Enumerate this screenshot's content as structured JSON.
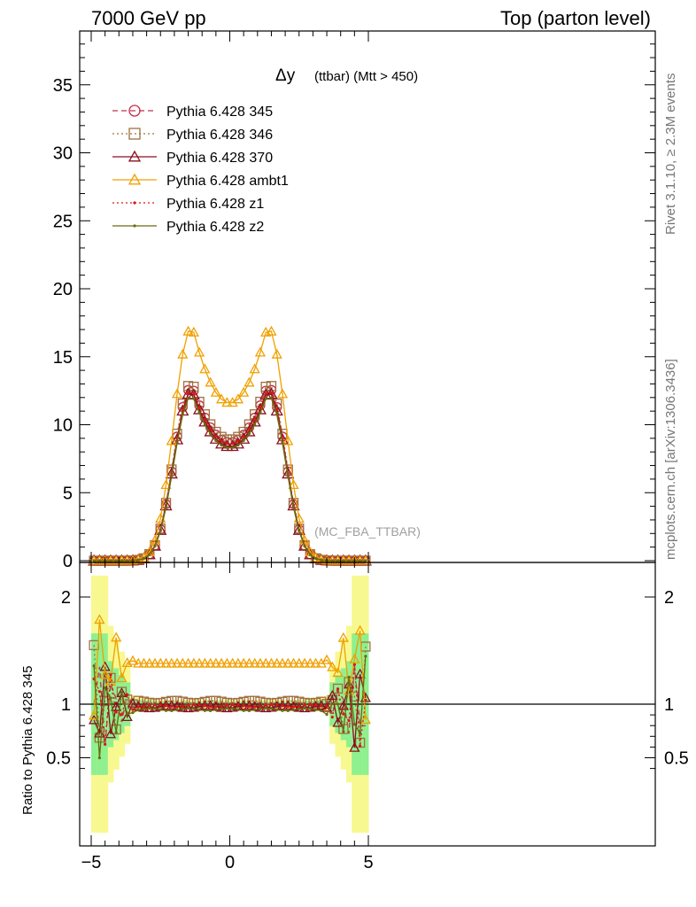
{
  "header": {
    "left": "7000 GeV pp",
    "right": "Top (parton level)"
  },
  "side_labels": {
    "rivet": "Rivet 3.1.10, ≥ 2.3M events",
    "mcplots": "mcplots.cern.ch [arXiv:1306.3436]"
  },
  "watermark": "(MC_FBA_TTBAR)",
  "chart_data": [
    {
      "type": "line",
      "title_main": "Δy",
      "title_sub": "(ttbar) (Mtt > 450)",
      "xlim": [
        -5,
        5
      ],
      "ylim": [
        0,
        39
      ],
      "x_ticks": [
        "−5",
        "0",
        "5"
      ],
      "y_ticks": [
        "0",
        "5",
        "10",
        "15",
        "20",
        "25",
        "30",
        "35"
      ],
      "legend_position": "top-left",
      "colors": {
        "p345": "#c0304a",
        "p346": "#a07040",
        "p370": "#8a1020",
        "ambt1": "#f0a000",
        "z1": "#d81818",
        "z2": "#6b6a10"
      },
      "series": [
        {
          "name": "Pythia 6.428 345",
          "key": "p345",
          "marker": "circle-open",
          "dash": "dashed",
          "peak": 12.8,
          "dip": 8.7
        },
        {
          "name": "Pythia 6.428 346",
          "key": "p346",
          "marker": "square-open",
          "dash": "dotted",
          "peak": 13.1,
          "dip": 8.9
        },
        {
          "name": "Pythia 6.428 370",
          "key": "p370",
          "marker": "triangle-open",
          "dash": "solid",
          "peak": 12.5,
          "dip": 8.4
        },
        {
          "name": "Pythia 6.428 ambt1",
          "key": "ambt1",
          "marker": "triangle-open",
          "dash": "solid",
          "peak": 17.2,
          "dip": 11.6
        },
        {
          "name": "Pythia 6.428 z1",
          "key": "z1",
          "marker": "dot",
          "dash": "dotted",
          "peak": 12.6,
          "dip": 8.6
        },
        {
          "name": "Pythia 6.428 z2",
          "key": "z2",
          "marker": "dot",
          "dash": "solid",
          "peak": 12.2,
          "dip": 8.3
        }
      ]
    },
    {
      "type": "line",
      "ylabel": "Ratio to Pythia 6.428 345",
      "xlim": [
        -5,
        5
      ],
      "ylim": [
        0.35,
        2.3
      ],
      "y_ticks": [
        "0.5",
        "1",
        "2"
      ],
      "reference_line": 1,
      "band_colors": {
        "inner": "#8ef08e",
        "outer": "#f8f890"
      },
      "ratios": {
        "p346": 1.02,
        "p370": 0.975,
        "ambt1": 1.38,
        "z1": 0.985,
        "z2": 0.95
      }
    }
  ]
}
